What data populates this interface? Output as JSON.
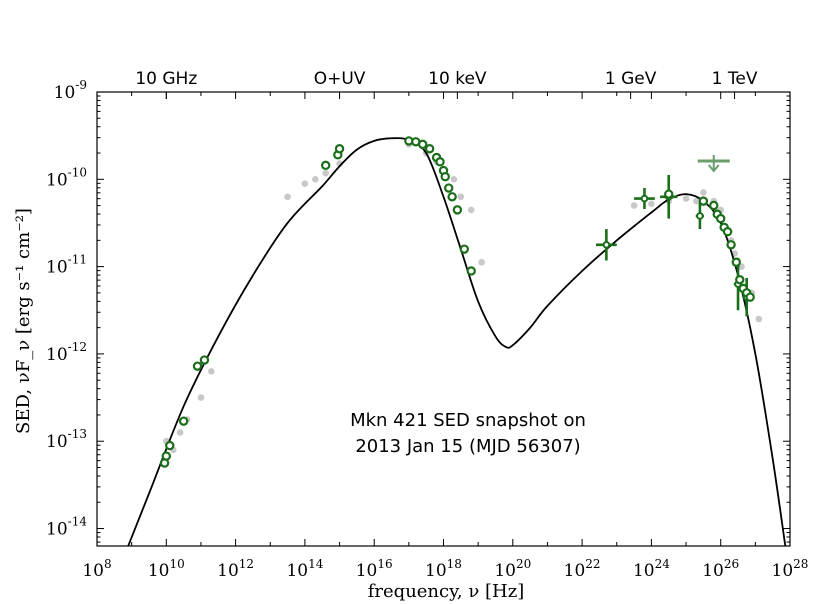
{
  "chart_data": {
    "type": "scatter",
    "annotation": [
      "Mkn 421 SED snapshot on",
      "2013 Jan 15 (MJD 56307)"
    ],
    "xlabel": "frequency, ν [Hz]",
    "ylabel": "SED, νF_ν [erg s⁻¹ cm⁻²]",
    "x_scale": "log",
    "y_scale": "log",
    "xlim_log10": [
      8,
      28
    ],
    "ylim_log10": [
      -14.2,
      -9
    ],
    "x_ticks": [
      {
        "base": "10",
        "exp": "8"
      },
      {
        "base": "10",
        "exp": "10"
      },
      {
        "base": "10",
        "exp": "12"
      },
      {
        "base": "10",
        "exp": "14"
      },
      {
        "base": "10",
        "exp": "16"
      },
      {
        "base": "10",
        "exp": "18"
      },
      {
        "base": "10",
        "exp": "20"
      },
      {
        "base": "10",
        "exp": "22"
      },
      {
        "base": "10",
        "exp": "24"
      },
      {
        "base": "10",
        "exp": "26"
      },
      {
        "base": "10",
        "exp": "28"
      }
    ],
    "y_ticks": [
      {
        "base": "10",
        "exp": "-9"
      },
      {
        "base": "10",
        "exp": "-10"
      },
      {
        "base": "10",
        "exp": "-11"
      },
      {
        "base": "10",
        "exp": "-12"
      },
      {
        "base": "10",
        "exp": "-13"
      },
      {
        "base": "10",
        "exp": "-14"
      }
    ],
    "top_axis_labels": [
      {
        "label": "10 GHz",
        "log10_nu": 10
      },
      {
        "label": "O+UV",
        "log10_nu": 15
      },
      {
        "label": "10 keV",
        "log10_nu": 18.4
      },
      {
        "label": "1 GeV",
        "log10_nu": 23.4
      },
      {
        "label": "1 TeV",
        "log10_nu": 26.4
      }
    ],
    "colors": {
      "model": "#000000",
      "snapshot": "#1a6e1a",
      "snapshot_upper": "#6b9e6b",
      "archival": "#c8c8c8"
    },
    "series": [
      {
        "kind": "model-line",
        "points_log10": [
          [
            8.8,
            -14.3
          ],
          [
            9.5,
            -13.6
          ],
          [
            10.5,
            -12.6
          ],
          [
            11.5,
            -11.8
          ],
          [
            12.5,
            -11.1
          ],
          [
            13.5,
            -10.5
          ],
          [
            14.5,
            -10.08
          ],
          [
            15,
            -9.85
          ],
          [
            15.5,
            -9.66
          ],
          [
            16,
            -9.56
          ],
          [
            16.5,
            -9.53
          ],
          [
            17,
            -9.55
          ],
          [
            17.5,
            -9.7
          ],
          [
            18,
            -10.2
          ],
          [
            18.5,
            -10.8
          ],
          [
            19,
            -11.4
          ],
          [
            19.5,
            -11.8
          ],
          [
            19.8,
            -11.92
          ],
          [
            20,
            -11.9
          ],
          [
            20.5,
            -11.7
          ],
          [
            21,
            -11.45
          ],
          [
            22,
            -11.05
          ],
          [
            23,
            -10.7
          ],
          [
            24,
            -10.38
          ],
          [
            24.5,
            -10.23
          ],
          [
            25,
            -10.17
          ],
          [
            25.5,
            -10.25
          ],
          [
            26,
            -10.5
          ],
          [
            26.5,
            -11.1
          ],
          [
            27,
            -12
          ],
          [
            27.5,
            -13.2
          ],
          [
            27.9,
            -14.3
          ]
        ]
      },
      {
        "kind": "snapshot",
        "points_log10": [
          [
            9.95,
            -13.25
          ],
          [
            10,
            -13.17
          ],
          [
            10.1,
            -13.05
          ],
          [
            10.5,
            -12.77
          ],
          [
            10.9,
            -12.14
          ],
          [
            11.1,
            -12.07
          ],
          [
            14.6,
            -9.84
          ],
          [
            14.95,
            -9.72
          ],
          [
            15,
            -9.65
          ],
          [
            17,
            -9.56
          ],
          [
            17.2,
            -9.57
          ],
          [
            17.4,
            -9.6
          ],
          [
            17.6,
            -9.65
          ],
          [
            17.8,
            -9.75
          ],
          [
            17.9,
            -9.8
          ],
          [
            18,
            -9.9
          ],
          [
            18.05,
            -9.97
          ],
          [
            18.15,
            -10.1
          ],
          [
            18.25,
            -10.2
          ],
          [
            18.4,
            -10.35
          ],
          [
            18.6,
            -10.8
          ],
          [
            18.8,
            -11.05
          ],
          [
            24.5,
            -10.17
          ],
          [
            25.5,
            -10.25
          ],
          [
            25.8,
            -10.3
          ],
          [
            25.9,
            -10.4
          ],
          [
            26,
            -10.45
          ],
          [
            26.1,
            -10.55
          ],
          [
            26.2,
            -10.6
          ],
          [
            26.3,
            -10.75
          ],
          [
            26.45,
            -10.95
          ],
          [
            26.55,
            -11.15
          ],
          [
            26.65,
            -11.25
          ],
          [
            26.75,
            -11.3
          ],
          [
            26.85,
            -11.35
          ]
        ],
        "errorbars_log10": [
          [
            22.7,
            -10.75,
            0.3,
            0.18
          ],
          [
            23.8,
            -10.22,
            0.3,
            0.12
          ],
          [
            24.5,
            -10.2,
            0.25,
            0.25
          ],
          [
            25.4,
            -10.42,
            0.12,
            0.15
          ],
          [
            26.5,
            -11.2,
            0.12,
            0.3
          ],
          [
            26.75,
            -11.35,
            0.1,
            0.22
          ]
        ]
      },
      {
        "kind": "snapshot-upper",
        "points_log10": [
          [
            25.8,
            -9.79
          ]
        ]
      },
      {
        "kind": "archival",
        "points_log10": [
          [
            10,
            -13.0
          ],
          [
            10.2,
            -13.1
          ],
          [
            10.4,
            -12.9
          ],
          [
            10.6,
            -12.75
          ],
          [
            11,
            -12.5
          ],
          [
            11.3,
            -12.2
          ],
          [
            13.5,
            -10.2
          ],
          [
            14,
            -10.05
          ],
          [
            14.3,
            -10.0
          ],
          [
            14.6,
            -9.93
          ],
          [
            15,
            -9.82
          ],
          [
            17,
            -9.6
          ],
          [
            17.5,
            -9.7
          ],
          [
            17.8,
            -9.8
          ],
          [
            18,
            -9.9
          ],
          [
            18.3,
            -10.0
          ],
          [
            18.5,
            -10.2
          ],
          [
            18.8,
            -10.35
          ],
          [
            19.1,
            -10.95
          ],
          [
            23.5,
            -10.3
          ],
          [
            24,
            -10.28
          ],
          [
            24.5,
            -10.25
          ],
          [
            25,
            -10.22
          ],
          [
            25.5,
            -10.15
          ],
          [
            25.8,
            -10.25
          ],
          [
            26,
            -10.35
          ],
          [
            26.3,
            -10.7
          ],
          [
            26.6,
            -11.0
          ],
          [
            26.9,
            -11.3
          ],
          [
            27.1,
            -11.6
          ],
          [
            26.4,
            -10.85
          ],
          [
            25.3,
            -10.25
          ]
        ]
      }
    ]
  }
}
